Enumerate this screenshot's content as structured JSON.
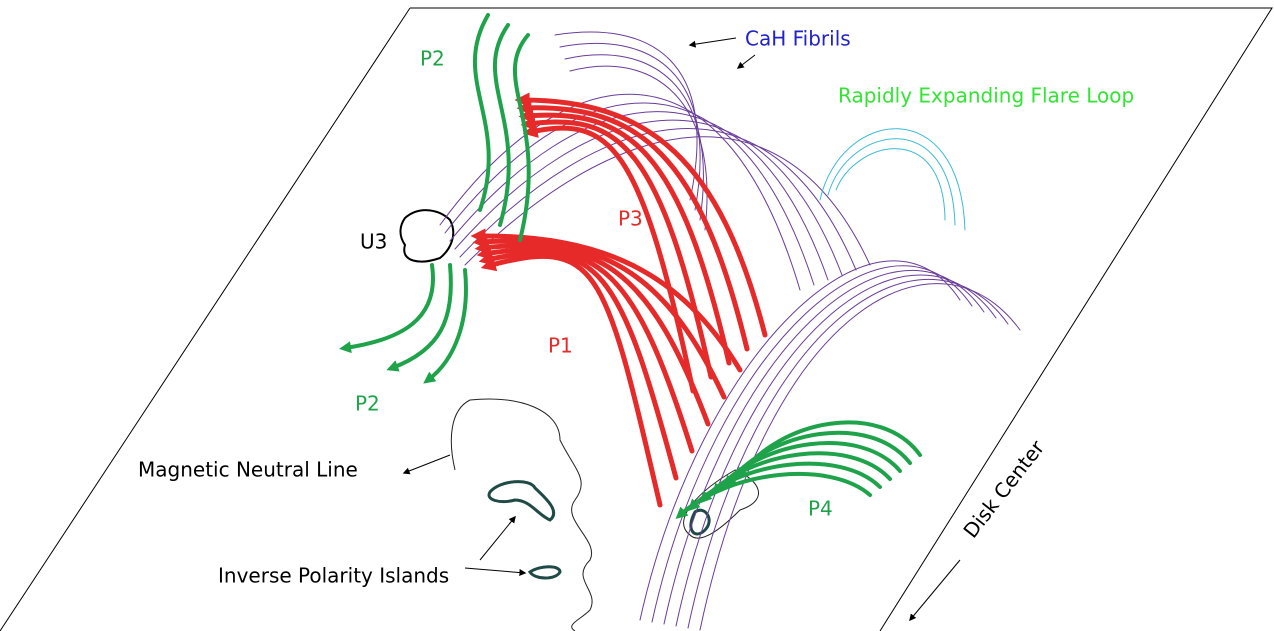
{
  "labels": {
    "p2_top": "P2",
    "u3": "U3",
    "p3": "P3",
    "p1": "P1",
    "p2_bottom": "P2",
    "cah_fibrils": "CaH Fibrils",
    "flare_loop": "Rapidly Expanding Flare Loop",
    "neutral_line": "Magnetic Neutral Line",
    "polarity_islands": "Inverse Polarity Islands",
    "p4": "P4",
    "disk_center": "Disk Center"
  }
}
